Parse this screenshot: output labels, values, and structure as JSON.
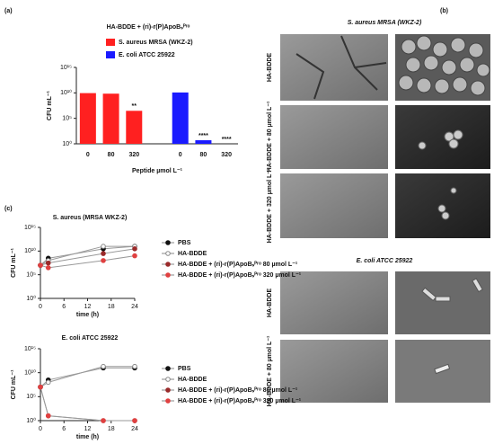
{
  "chart_data": [
    {
      "type": "bar",
      "panel": "(a)",
      "title": "HA-BDDE + (ri)-r(P)ApoBₛᴾʳᵒ",
      "xlabel": "Peptide µmol L⁻¹",
      "ylabel": "CFU mL⁻¹",
      "categories": [
        "0",
        "80",
        "320",
        "0",
        "80",
        "320"
      ],
      "series": [
        {
          "name": "S. aureus MRSA (WKZ-2)",
          "color": "#ff2020",
          "values": [
            9000000000,
            7000000000,
            3000000,
            null,
            null,
            null
          ]
        },
        {
          "name": "E. coli ATCC 25922",
          "color": "#1a1aff",
          "values": [
            null,
            null,
            null,
            12000000000,
            5,
            null
          ]
        }
      ],
      "annotations": [
        null,
        null,
        "**",
        null,
        "****",
        "****"
      ],
      "log_scale": true,
      "ylim": [
        1,
        1000000000000000
      ],
      "yticks": [
        {
          "value": 1,
          "label": "10⁰"
        },
        {
          "value": 100000,
          "label": "10⁵"
        },
        {
          "value": 10000000000,
          "label": "10¹⁰"
        },
        {
          "value": 1000000000000000,
          "label": "10¹⁵"
        }
      ]
    },
    {
      "type": "line",
      "panel": "(c)",
      "title": "S. aureus (MRSA WKZ-2)",
      "xlabel": "time (h)",
      "ylabel": "CFU mL⁻¹",
      "x": [
        0,
        2,
        16,
        24
      ],
      "series": [
        {
          "name": "PBS",
          "color": "#111111",
          "values": [
            10000000,
            300000000,
            30000000000,
            100000000000
          ]
        },
        {
          "name": "HA-BDDE",
          "color": "#888888",
          "values": [
            10000000,
            100000000,
            100000000000,
            100000000000
          ]
        },
        {
          "name": "HA-BDDE + (ri)-r(P)ApoBₛᴾʳᵒ 80 µmol L⁻¹",
          "color": "#9a2a2a",
          "values": [
            10000000,
            30000000,
            3000000000,
            30000000000
          ]
        },
        {
          "name": "HA-BDDE + (ri)-r(P)ApoBₛᴾʳᵒ 320 µmol L⁻¹",
          "color": "#e04040",
          "values": [
            10000000,
            3000000,
            100000000,
            1000000000
          ]
        }
      ],
      "log_scale": true,
      "xlim": [
        0,
        24
      ],
      "xticks": [
        0,
        6,
        12,
        18,
        24
      ],
      "ylim": [
        1,
        1000000000000000
      ],
      "yticks": [
        {
          "value": 1,
          "label": "10⁰"
        },
        {
          "value": 100000,
          "label": "10⁵"
        },
        {
          "value": 10000000000,
          "label": "10¹⁰"
        },
        {
          "value": 1000000000000000,
          "label": "10¹⁵"
        }
      ]
    },
    {
      "type": "line",
      "title": "E. coli ATCC 25922",
      "xlabel": "time (h)",
      "ylabel": "CFU mL⁻¹",
      "x": [
        0,
        2,
        16,
        24
      ],
      "series": [
        {
          "name": "PBS",
          "color": "#111111",
          "values": [
            10000000,
            300000000,
            100000000000,
            100000000000
          ]
        },
        {
          "name": "HA-BDDE",
          "color": "#888888",
          "values": [
            10000000,
            100000000,
            200000000000,
            200000000000
          ]
        },
        {
          "name": "HA-BDDE + (ri)-r(P)ApoBₛᴾʳᵒ 80 µmol L⁻¹",
          "color": "#9a2a2a",
          "values": [
            10000000,
            10,
            1,
            1
          ]
        },
        {
          "name": "HA-BDDE + (ri)-r(P)ApoBₛᴾʳᵒ 320 µmol L⁻¹",
          "color": "#e04040",
          "values": [
            10000000,
            10,
            1,
            1
          ]
        }
      ],
      "log_scale": true,
      "xlim": [
        0,
        24
      ],
      "xticks": [
        0,
        6,
        12,
        18,
        24
      ],
      "ylim": [
        1,
        1000000000000000
      ],
      "yticks": [
        {
          "value": 1,
          "label": "10⁰"
        },
        {
          "value": 100000,
          "label": "10⁵"
        },
        {
          "value": 10000000000,
          "label": "10¹⁰"
        },
        {
          "value": 1000000000000000,
          "label": "10¹⁵"
        }
      ]
    }
  ],
  "panel_b": {
    "label": "(b)",
    "sections": [
      {
        "title": "S. aureus MRSA (WKZ-2)",
        "rows": [
          "HA-BDDE",
          "HA-BDDE + 80 µmol L⁻¹",
          "HA-BDDE + 320 µmol L⁻¹"
        ]
      },
      {
        "title": "E. coli ATCC 25922",
        "rows": [
          "HA-BDDE",
          "HA-BDDE + 80 µmol L⁻¹"
        ]
      }
    ]
  }
}
